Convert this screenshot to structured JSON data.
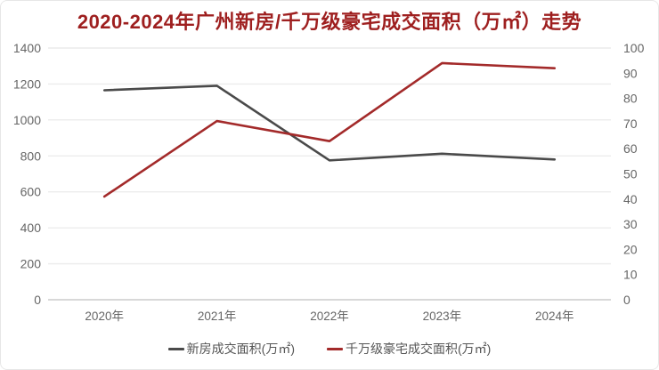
{
  "colors": {
    "title": "#9e1f1f",
    "axis_text": "#666666",
    "gridline": "#ececec",
    "zero_line": "#cccccc",
    "background": "#ffffff",
    "card_border": "#e7e7e7",
    "series_new_homes": "#4a4a4a",
    "series_luxury": "#a32a2a"
  },
  "chart_data": {
    "type": "line",
    "title": "2020-2024年广州新房/千万级豪宅成交面积（万㎡）走势",
    "categories": [
      "2020年",
      "2021年",
      "2022年",
      "2023年",
      "2024年"
    ],
    "series": [
      {
        "name": "新房成交面积(万㎡)",
        "yaxis": "left",
        "color": "#4a4a4a",
        "values": [
          1165,
          1190,
          775,
          812,
          780
        ]
      },
      {
        "name": "千万级豪宅成交面积(万㎡)",
        "yaxis": "right",
        "color": "#a32a2a",
        "values": [
          41,
          71,
          63,
          94,
          92
        ]
      }
    ],
    "left_axis": {
      "min": 0,
      "max": 1400,
      "ticks": [
        1400,
        1200,
        1000,
        800,
        600,
        400,
        200,
        0
      ]
    },
    "right_axis": {
      "min": 0,
      "max": 100,
      "ticks": [
        100,
        90,
        80,
        70,
        60,
        50,
        40,
        30,
        20,
        10,
        0
      ]
    },
    "grid": true,
    "legend_position": "bottom"
  }
}
